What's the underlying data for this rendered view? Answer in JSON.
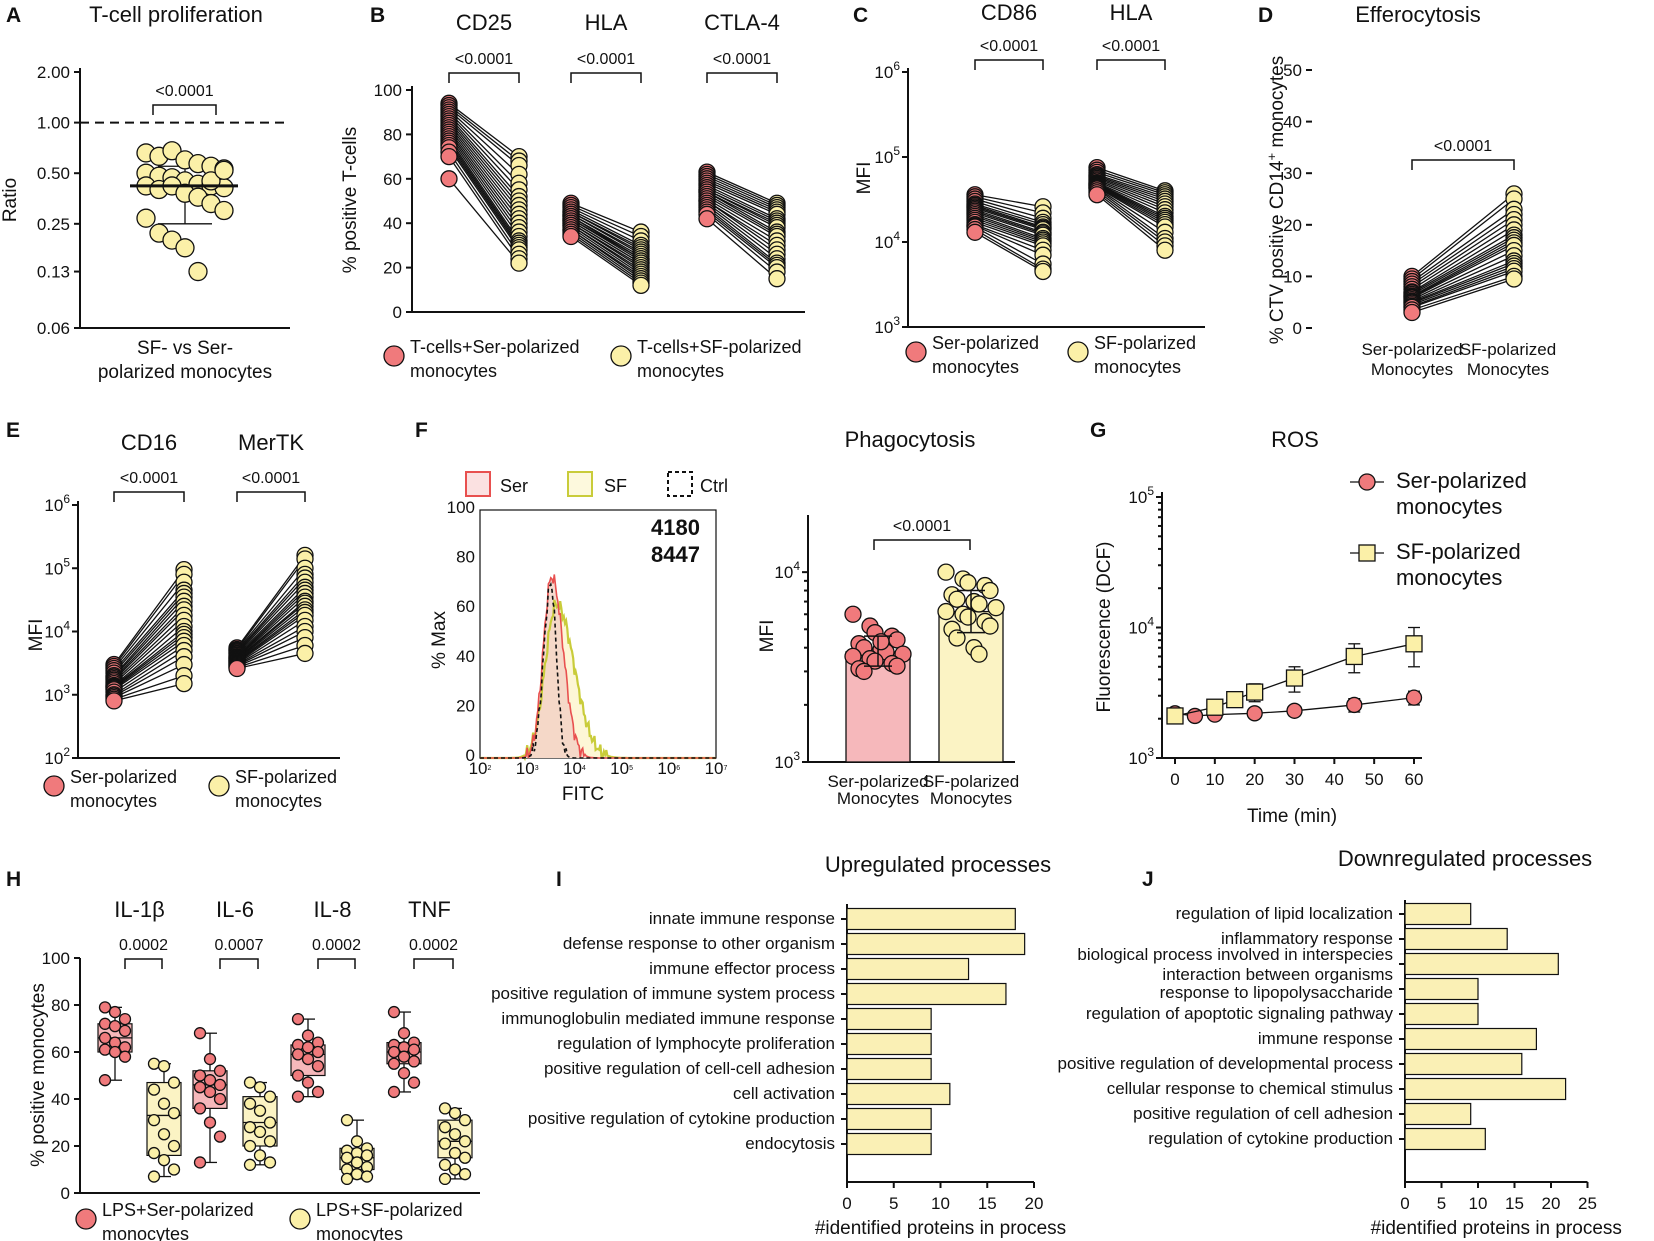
{
  "colors": {
    "ser": "#f07a7c",
    "sf": "#fbf0a8",
    "ser_bar": "#f6b8bb",
    "sf_bar": "#fbf3c4",
    "bar": "#faf0b5",
    "sf_hist": "#c9cc3a",
    "ser_hist": "#e8504f",
    "ser_mfi_text": "#e8333a",
    "sf_mfi_text": "#cdd43c"
  },
  "chart_data": [
    {
      "panel": "A",
      "type": "scatter",
      "title": "T-cell proliferation",
      "ylabel": "Ratio",
      "yscale": "log2",
      "ylim": [
        0.06,
        2.0
      ],
      "yticks": [
        "2.00",
        "1.00",
        "0.50",
        "0.25",
        "0.13",
        "0.06"
      ],
      "xlabel": [
        "SF- vs Ser-",
        "polarized monocytes"
      ],
      "reference_line": 1.0,
      "median": 0.42,
      "iqr": [
        0.25,
        0.55
      ],
      "pvalue": "<0.0001",
      "values": [
        0.66,
        0.63,
        0.68,
        0.6,
        0.57,
        0.55,
        0.53,
        0.5,
        0.48,
        0.47,
        0.45,
        0.43,
        0.42,
        0.41,
        0.42,
        0.4,
        0.42,
        0.38,
        0.36,
        0.33,
        0.3,
        0.27,
        0.22,
        0.2,
        0.18,
        0.13,
        0.45,
        0.52
      ]
    },
    {
      "panel": "B",
      "type": "paired",
      "ylabel": "% positive T-cells",
      "ylim": [
        0,
        100
      ],
      "yticks": [
        "0",
        "20",
        "40",
        "60",
        "80",
        "100"
      ],
      "groups": [
        {
          "name": "CD25",
          "pvalue": "<0.0001",
          "ser": [
            94,
            93,
            92,
            91,
            90,
            89,
            88,
            87,
            86,
            85,
            84,
            83,
            82,
            81,
            80,
            79,
            78,
            77,
            76,
            75,
            74,
            72,
            70,
            60
          ],
          "sf": [
            70,
            68,
            66,
            62,
            58,
            55,
            52,
            50,
            48,
            46,
            44,
            42,
            40,
            38,
            36,
            34,
            32,
            31,
            30,
            29,
            28,
            26,
            24,
            22
          ]
        },
        {
          "name": "HLA",
          "pvalue": "<0.0001",
          "ser": [
            49,
            48,
            47,
            46,
            45,
            45,
            44,
            44,
            43,
            43,
            42,
            42,
            41,
            41,
            40,
            40,
            39,
            39,
            38,
            37,
            37,
            36,
            35,
            34
          ],
          "sf": [
            36,
            34,
            32,
            30,
            29,
            28,
            27,
            26,
            25,
            24,
            24,
            23,
            22,
            22,
            21,
            20,
            19,
            18,
            17,
            16,
            15,
            14,
            13,
            12
          ]
        },
        {
          "name": "CTLA-4",
          "pvalue": "<0.0001",
          "ser": [
            63,
            62,
            61,
            60,
            59,
            58,
            57,
            56,
            55,
            55,
            54,
            54,
            53,
            52,
            51,
            50,
            50,
            49,
            48,
            47,
            46,
            45,
            44,
            42
          ],
          "sf": [
            49,
            48,
            47,
            46,
            45,
            44,
            42,
            41,
            40,
            39,
            38,
            36,
            35,
            34,
            32,
            30,
            28,
            26,
            24,
            22,
            21,
            20,
            18,
            15
          ]
        }
      ],
      "legend": [
        {
          "label": "T-cells+Ser-polarized",
          "label2": "monocytes"
        },
        {
          "label": "T-cells+SF-polarized",
          "label2": "monocytes"
        }
      ]
    },
    {
      "panel": "C",
      "type": "paired",
      "ylabel": "MFI",
      "yscale": "log10",
      "ylim": [
        1000,
        1000000
      ],
      "yticks": [
        "10",
        "10",
        "10",
        "10"
      ],
      "ytick_exp": [
        "3",
        "4",
        "5",
        "6"
      ],
      "groups": [
        {
          "name": "CD86",
          "pvalue": "<0.0001",
          "ser": [
            36000,
            34000,
            32000,
            30000,
            28000,
            27000,
            26000,
            25000,
            24000,
            23000,
            22000,
            21000,
            20000,
            19000,
            18000,
            17000,
            16000,
            15500,
            15000,
            14000,
            13000
          ],
          "sf": [
            26000,
            22000,
            19000,
            17000,
            16000,
            15000,
            14500,
            14000,
            13000,
            12500,
            12000,
            11000,
            10500,
            10000,
            9500,
            9000,
            8000,
            7000,
            5500,
            4800,
            4500
          ]
        },
        {
          "name": "HLA",
          "pvalue": "<0.0001",
          "ser": [
            75000,
            70000,
            66000,
            62000,
            60000,
            58000,
            56000,
            54000,
            52000,
            50000,
            49000,
            48000,
            47000,
            46000,
            45000,
            44000,
            43000,
            42000,
            40000,
            38000,
            36000
          ],
          "sf": [
            40000,
            38000,
            36000,
            34000,
            32000,
            30000,
            28000,
            26000,
            24000,
            22000,
            20000,
            19000,
            18000,
            17000,
            16000,
            15000,
            13000,
            11000,
            10000,
            9000,
            8000
          ]
        }
      ],
      "legend": [
        {
          "label": "Ser-polarized",
          "label2": "monocytes"
        },
        {
          "label": "SF-polarized",
          "label2": "monocytes"
        }
      ]
    },
    {
      "panel": "D",
      "type": "paired",
      "title": "Efferocytosis",
      "ylabel": "% CTV positive CD14",
      "ylabel_sup": "+",
      "ylabel_end": " monocytes",
      "ylim": [
        0,
        50
      ],
      "yticks": [
        "0",
        "10",
        "20",
        "30",
        "40",
        "50"
      ],
      "categories": [
        [
          "Ser-polarized",
          "Monocytes"
        ],
        [
          "SF-polarized",
          "Monocytes"
        ]
      ],
      "pvalue": "<0.0001",
      "ser": [
        10,
        9.5,
        9,
        8.5,
        8,
        7.5,
        7,
        6.8,
        6.5,
        6.2,
        6,
        5.8,
        5.5,
        5.2,
        5,
        4.8,
        4.5,
        4.2,
        4,
        3.5,
        3
      ],
      "sf": [
        26,
        25,
        23,
        22,
        21,
        20,
        19,
        18,
        17.5,
        17,
        16.5,
        16,
        15,
        14,
        13,
        12.5,
        12,
        11.5,
        11,
        10,
        9.5
      ]
    },
    {
      "panel": "E",
      "type": "paired",
      "ylabel": "MFI",
      "yscale": "log10",
      "ylim": [
        100,
        1000000
      ],
      "yticks": [
        "10",
        "10",
        "10",
        "10",
        "10"
      ],
      "ytick_exp": [
        "2",
        "3",
        "4",
        "5",
        "6"
      ],
      "groups": [
        {
          "name": "CD16",
          "pvalue": "<0.0001",
          "ser": [
            3000,
            2800,
            2600,
            2400,
            2200,
            2000,
            1900,
            1800,
            1700,
            1600,
            1500,
            1400,
            1350,
            1300,
            1250,
            1200,
            1100,
            1000,
            950,
            900,
            850,
            800
          ],
          "sf": [
            95000,
            80000,
            60000,
            45000,
            40000,
            35000,
            30000,
            25000,
            22000,
            18000,
            15000,
            12000,
            10000,
            9000,
            8000,
            7000,
            6000,
            5000,
            4000,
            3000,
            2000,
            1500
          ]
        },
        {
          "name": "MerTK",
          "pvalue": "<0.0001",
          "ser": [
            5500,
            5200,
            5000,
            4800,
            4600,
            4400,
            4200,
            4000,
            3900,
            3800,
            3700,
            3600,
            3500,
            3400,
            3300,
            3200,
            3100,
            3000,
            2900,
            2800,
            2700,
            2600
          ],
          "sf": [
            160000,
            140000,
            100000,
            80000,
            70000,
            60000,
            50000,
            45000,
            40000,
            35000,
            30000,
            28000,
            25000,
            22000,
            20000,
            18000,
            15000,
            12000,
            10000,
            8000,
            6000,
            4500
          ]
        }
      ],
      "legend": [
        {
          "label": "Ser-polarized",
          "label2": "monocytes"
        },
        {
          "label": "SF-polarized",
          "label2": "monocytes"
        }
      ]
    },
    {
      "panel": "F",
      "type": "histogram",
      "ylabel": "% Max",
      "xlabel": "FITC",
      "yticks": [
        "0",
        "20",
        "40",
        "60",
        "80",
        "100"
      ],
      "xticks": [
        "10",
        "10",
        "10",
        "10",
        "10",
        "10"
      ],
      "xtick_exp": [
        "2",
        "3",
        "4",
        "5",
        "6",
        "7"
      ],
      "legend": [
        "Ser",
        "SF",
        "Ctrl"
      ],
      "ser_mfi": "4180",
      "sf_mfi": "8447"
    },
    {
      "panel": "F2",
      "type": "bar",
      "title": "Phagocytosis",
      "ylabel": "MFI",
      "yscale": "log10",
      "ylim": [
        1000,
        20000
      ],
      "yticks": [
        "10",
        "10"
      ],
      "ytick_exp": [
        "3",
        "4"
      ],
      "categories": [
        [
          "Ser-polarized",
          "Monocytes"
        ],
        [
          "SF-polarized",
          "Monocytes"
        ]
      ],
      "pvalue": "<0.0001",
      "means": [
        3800,
        6200
      ],
      "errors": [
        [
          3200,
          4600
        ],
        [
          4800,
          8000
        ]
      ],
      "ser_points": [
        6000,
        5200,
        4800,
        4600,
        4400,
        4200,
        4000,
        3900,
        3800,
        3700,
        3600,
        3500,
        3400,
        3300,
        3200,
        3100,
        3000,
        4300
      ],
      "sf_points": [
        10000,
        9200,
        8800,
        8500,
        8000,
        7600,
        7200,
        7000,
        6800,
        6500,
        6200,
        6000,
        5800,
        5500,
        5200,
        5000,
        4500,
        4000,
        3700
      ]
    },
    {
      "panel": "G",
      "type": "line",
      "title": "ROS",
      "ylabel": "Fluorescence (DCF)",
      "xlabel": "Time (min)",
      "yscale": "log10",
      "ylim": [
        1000,
        100000
      ],
      "yticks": [
        "10",
        "10",
        "10"
      ],
      "ytick_exp": [
        "3",
        "4",
        "5"
      ],
      "x": [
        0,
        5,
        10,
        15,
        20,
        30,
        45,
        60
      ],
      "xticks": [
        "0",
        "10",
        "20",
        "30",
        "40",
        "50",
        "60"
      ],
      "series": [
        {
          "name": "Ser-polarized",
          "name2": "monocytes",
          "x": [
            0,
            5,
            10,
            20,
            30,
            45,
            60
          ],
          "values": [
            2200,
            2100,
            2150,
            2200,
            2300,
            2550,
            2900
          ],
          "err": [
            200,
            150,
            150,
            150,
            200,
            300,
            350
          ]
        },
        {
          "name": "SF-polarized",
          "name2": "monocytes",
          "x": [
            0,
            10,
            15,
            20,
            30,
            45,
            60
          ],
          "values": [
            2100,
            2450,
            2800,
            3200,
            4100,
            6000,
            7500
          ],
          "err": [
            250,
            250,
            300,
            500,
            900,
            1500,
            2500
          ]
        }
      ]
    },
    {
      "panel": "H",
      "type": "boxplot",
      "ylabel": "% positive monocytes",
      "ylim": [
        0,
        100
      ],
      "yticks": [
        "0",
        "20",
        "40",
        "60",
        "80",
        "100"
      ],
      "groups": [
        {
          "name": "IL-1β",
          "pvalue": "0.0002",
          "ser": {
            "min": 48,
            "q1": 60,
            "median": 66,
            "q3": 72,
            "max": 79,
            "points": [
              79,
              77,
              74,
              72,
              71,
              69,
              66,
              64,
              62,
              61,
              60,
              58,
              48
            ]
          },
          "sf": {
            "min": 7,
            "q1": 16,
            "median": 33,
            "q3": 47,
            "max": 55,
            "points": [
              55,
              54,
              47,
              44,
              38,
              34,
              31,
              25,
              20,
              17,
              14,
              10,
              7
            ]
          }
        },
        {
          "name": "IL-6",
          "pvalue": "0.0007",
          "ser": {
            "min": 13,
            "q1": 36,
            "median": 46,
            "q3": 52,
            "max": 68,
            "points": [
              68,
              57,
              52,
              50,
              48,
              46,
              45,
              43,
              40,
              36,
              30,
              24,
              13
            ]
          },
          "sf": {
            "min": 12,
            "q1": 20,
            "median": 30,
            "q3": 41,
            "max": 47,
            "points": [
              47,
              45,
              41,
              38,
              35,
              30,
              28,
              26,
              22,
              20,
              16,
              13,
              12
            ]
          }
        },
        {
          "name": "IL-8",
          "pvalue": "0.0002",
          "ser": {
            "min": 41,
            "q1": 50,
            "median": 59,
            "q3": 63,
            "max": 74,
            "points": [
              74,
              67,
              64,
              63,
              62,
              60,
              59,
              57,
              54,
              50,
              47,
              43,
              41
            ]
          },
          "sf": {
            "min": 6,
            "q1": 10,
            "median": 15,
            "q3": 19,
            "max": 31,
            "points": [
              31,
              22,
              19,
              18,
              17,
              16,
              15,
              13,
              11,
              10,
              8,
              7,
              6
            ]
          }
        },
        {
          "name": "TNF",
          "pvalue": "0.0002",
          "ser": {
            "min": 43,
            "q1": 55,
            "median": 60,
            "q3": 64,
            "max": 77,
            "points": [
              77,
              68,
              64,
              63,
              62,
              61,
              60,
              58,
              56,
              55,
              51,
              47,
              43
            ]
          },
          "sf": {
            "min": 6,
            "q1": 15,
            "median": 22,
            "q3": 31,
            "max": 36,
            "points": [
              36,
              34,
              31,
              28,
              25,
              22,
              21,
              17,
              15,
              12,
              10,
              8,
              6
            ]
          }
        }
      ],
      "legend": [
        {
          "label": "LPS+Ser-polarized",
          "label2": "monocytes"
        },
        {
          "label": "LPS+SF-polarized",
          "label2": "monocytes"
        }
      ]
    },
    {
      "panel": "I",
      "type": "barh",
      "title": "Upregulated processes",
      "xlabel": "#identified proteins in process",
      "xlim": [
        0,
        20
      ],
      "xticks": [
        "0",
        "5",
        "10",
        "15",
        "20"
      ],
      "categories": [
        "innate immune response",
        "defense response to other organism",
        "immune effector process",
        "positive regulation of immune system process",
        "immunoglobulin mediated immune response",
        "regulation of lymphocyte proliferation",
        "positive regulation of cell-cell adhesion",
        "cell activation",
        "positive regulation of cytokine production",
        "endocytosis"
      ],
      "values": [
        18,
        19,
        13,
        17,
        9,
        9,
        9,
        11,
        9,
        9
      ]
    },
    {
      "panel": "J",
      "type": "barh",
      "title": "Downregulated processes",
      "xlabel": "#identified proteins in process",
      "xlim": [
        0,
        25
      ],
      "xticks": [
        "0",
        "5",
        "10",
        "15",
        "20",
        "25"
      ],
      "categories": [
        "regulation of lipid localization",
        "inflammatory response",
        "biological process involved in interspecies",
        "response to lipopolysaccharide",
        "regulation of apoptotic signaling pathway",
        "immune response",
        "positive regulation of developmental process",
        "cellular response to chemical stimulus",
        "positive regulation of cell adhesion",
        "regulation of cytokine production"
      ],
      "category_extra": "interaction between organisms",
      "values": [
        9,
        14,
        21,
        10,
        10,
        18,
        16,
        22,
        9,
        11
      ]
    }
  ]
}
